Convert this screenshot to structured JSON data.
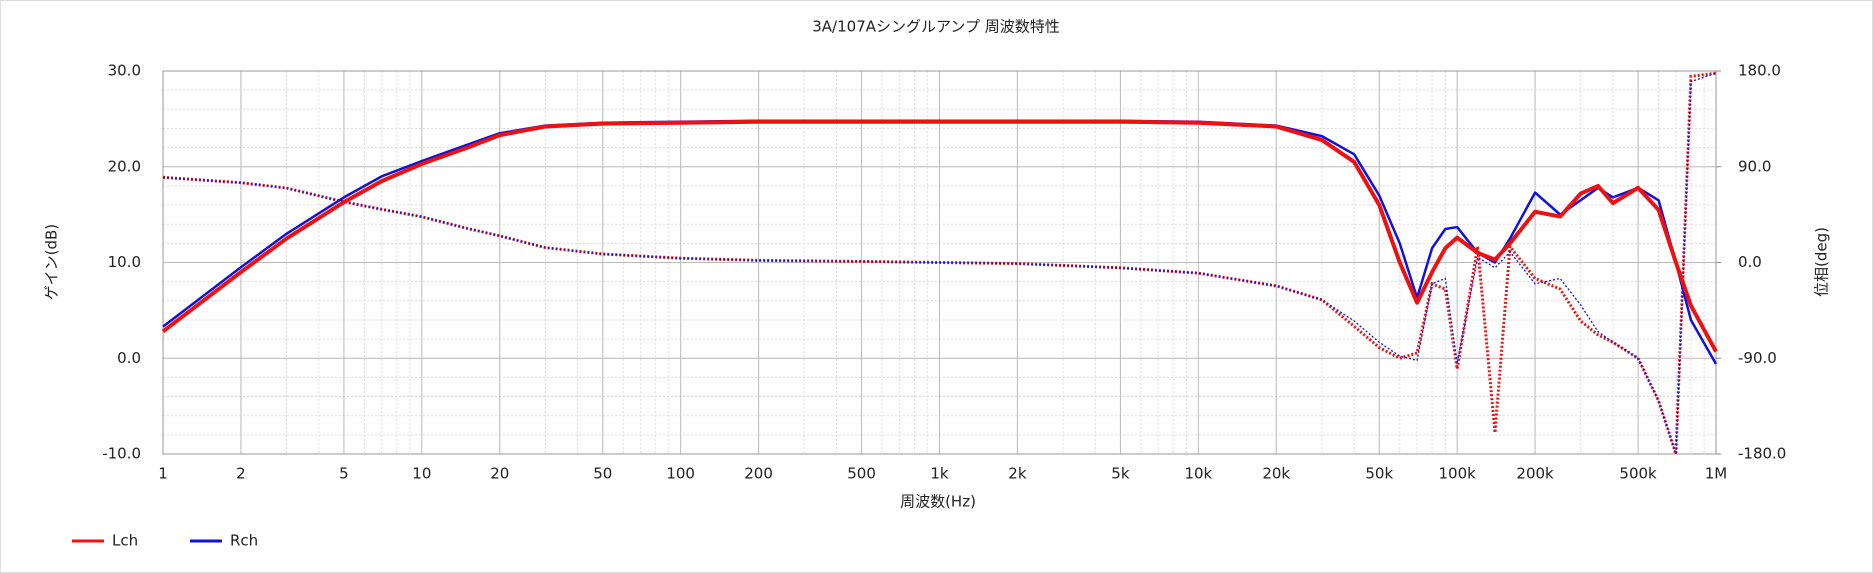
{
  "chart_data": {
    "type": "line",
    "title": "3A/107Aシングルアンプ 周波数特性",
    "xlabel": "周波数(Hz)",
    "ylabel": "ゲイン(dB)",
    "y2label": "位相(deg)",
    "log_x": true,
    "grid": true,
    "legend": "bottom-left",
    "x": [
      1,
      2,
      3,
      5,
      7,
      10,
      15,
      20,
      30,
      50,
      100,
      200,
      500,
      1000,
      2000,
      5000,
      10000,
      20000,
      30000,
      40000,
      50000,
      60000,
      70000,
      80000,
      90000,
      100000,
      120000,
      140000,
      160000,
      200000,
      250000,
      300000,
      350000,
      400000,
      500000,
      600000,
      700000,
      800000,
      1000000
    ],
    "xlim": [
      1,
      1000000
    ],
    "xticks": [
      1,
      2,
      5,
      10,
      20,
      50,
      100,
      200,
      500,
      {
        "value": 1000,
        "label": "1k"
      },
      {
        "value": 2000,
        "label": "2k"
      },
      {
        "value": 5000,
        "label": "5k"
      },
      {
        "value": 10000,
        "label": "10k"
      },
      {
        "value": 20000,
        "label": "20k"
      },
      {
        "value": 50000,
        "label": "50k"
      },
      {
        "value": 100000,
        "label": "100k"
      },
      {
        "value": 200000,
        "label": "200k"
      },
      {
        "value": 500000,
        "label": "500k"
      },
      {
        "value": 1000000,
        "label": "1M"
      }
    ],
    "ylim": [
      -10,
      30
    ],
    "yticks": [
      {
        "value": -10,
        "label": "-10.0"
      },
      {
        "value": 0,
        "label": "0.0"
      },
      {
        "value": 10,
        "label": "10.0"
      },
      {
        "value": 20,
        "label": "20.0"
      },
      {
        "value": 30,
        "label": "30.0"
      }
    ],
    "y2lim": [
      -180,
      180
    ],
    "y2ticks": [
      {
        "value": -180,
        "label": "-180.0"
      },
      {
        "value": -90,
        "label": "-90.0"
      },
      {
        "value": 0,
        "label": "0.0"
      },
      {
        "value": 90,
        "label": "90.0"
      },
      {
        "value": 180,
        "label": "180.0"
      }
    ],
    "series": [
      {
        "name": "Lch",
        "color": "#ee1111",
        "values": [
          2.8,
          9,
          12.5,
          16.3,
          18.5,
          20.3,
          22,
          23.3,
          24.2,
          24.5,
          24.6,
          24.7,
          24.7,
          24.7,
          24.7,
          24.7,
          24.6,
          24.2,
          22.8,
          20.5,
          16,
          10,
          5.8,
          9,
          11.5,
          12.6,
          11,
          10.3,
          12,
          15.3,
          14.8,
          17.2,
          18,
          16.2,
          17.8,
          15.5,
          10,
          5.5,
          0.7
        ],
        "phase": [
          80,
          75,
          70,
          57,
          50,
          43,
          32,
          25,
          14,
          8,
          4,
          2,
          1,
          0,
          -1,
          -5,
          -10,
          -22,
          -35,
          -60,
          -80,
          -90,
          -85,
          -20,
          -25,
          -100,
          15,
          -160,
          15,
          -15,
          -25,
          -55,
          -68,
          -75,
          -90,
          -130,
          -180,
          175,
          178
        ]
      },
      {
        "name": "Rch",
        "color": "#1111dd",
        "values": [
          3.3,
          9.5,
          13,
          16.8,
          19,
          20.6,
          22.3,
          23.5,
          24.3,
          24.6,
          24.7,
          24.8,
          24.8,
          24.8,
          24.8,
          24.8,
          24.7,
          24.3,
          23.2,
          21.3,
          17,
          12,
          6.3,
          11.5,
          13.5,
          13.7,
          11,
          10,
          12.5,
          17.3,
          15,
          16.5,
          17.8,
          16.8,
          17.8,
          16.5,
          10,
          4,
          -0.6
        ],
        "phase": [
          80,
          75,
          70,
          57,
          50,
          43,
          32,
          25,
          14,
          8,
          4,
          2,
          1,
          0,
          -1,
          -5,
          -10,
          -22,
          -35,
          -55,
          -75,
          -88,
          -92,
          -20,
          -15,
          -95,
          5,
          -5,
          10,
          -20,
          -15,
          -40,
          -65,
          -75,
          -90,
          -130,
          -180,
          170,
          178
        ]
      }
    ]
  }
}
